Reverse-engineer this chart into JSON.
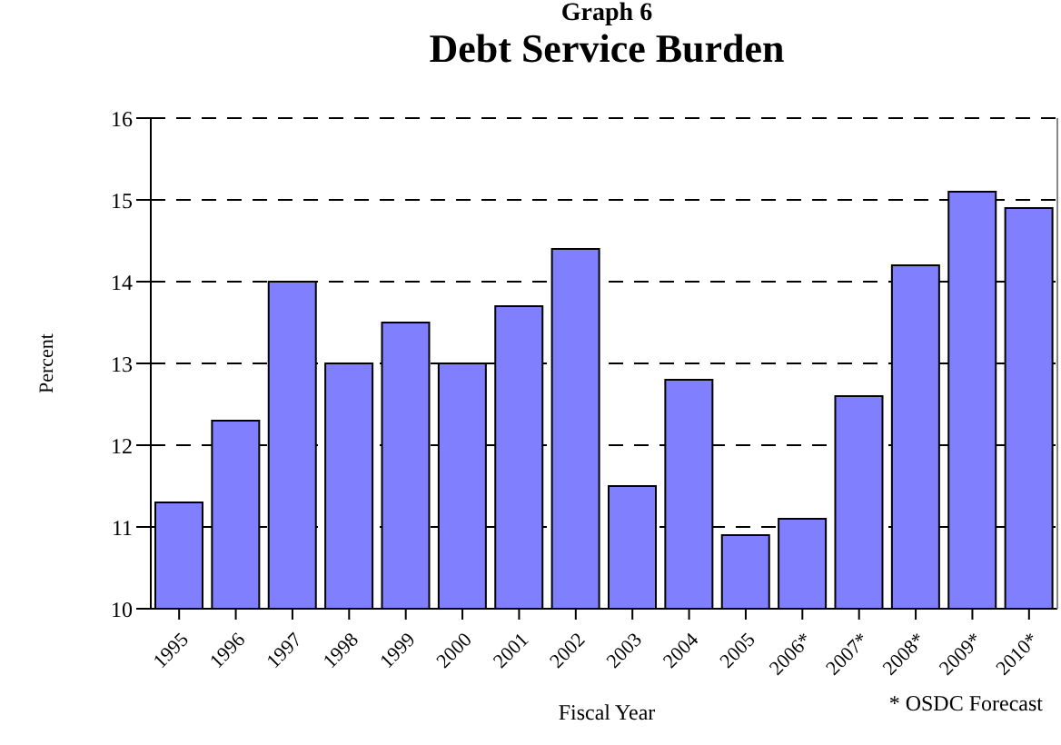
{
  "chart_data": {
    "type": "bar",
    "title": "Graph 6",
    "subtitle": "Debt Service Burden",
    "xlabel": "Fiscal Year",
    "ylabel": "Percent",
    "annotations": [
      "* OSDC Forecast"
    ],
    "categories": [
      "1995",
      "1996",
      "1997",
      "1998",
      "1999",
      "2000",
      "2001",
      "2002",
      "2003",
      "2004",
      "2005",
      "2006*",
      "2007*",
      "2008*",
      "2009*",
      "2010*"
    ],
    "values": [
      11.3,
      12.3,
      14.0,
      13.0,
      13.5,
      13.0,
      13.7,
      14.4,
      11.5,
      12.8,
      10.9,
      11.1,
      12.6,
      14.2,
      15.1,
      14.9
    ],
    "color": "#8080ff",
    "ylim": [
      10,
      16
    ],
    "yticks": [
      10,
      11,
      12,
      13,
      14,
      15,
      16
    ],
    "grid": "y",
    "legend": false
  }
}
